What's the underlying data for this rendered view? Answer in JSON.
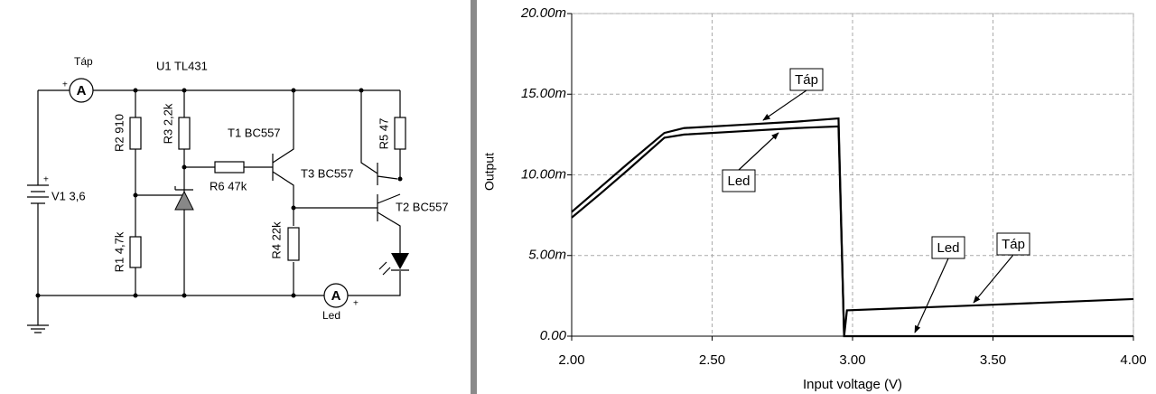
{
  "circuit": {
    "labels": {
      "tap_meter": "Táp",
      "u1": "U1 TL431",
      "r2": "R2 910",
      "r3": "R3 2,2k",
      "t1": "T1 BC557",
      "r5": "R5 47",
      "t3": "T3 BC557",
      "t2": "T2 BC557",
      "r6": "R6 47k",
      "v1": "V1 3,6",
      "r1": "R1 4,7k",
      "r4": "R4 22k",
      "led_meter": "Led"
    },
    "ammeter": "A",
    "plus": "+"
  },
  "chart_data": {
    "type": "line",
    "xlabel": "Input voltage (V)",
    "ylabel": "Output",
    "x": [
      2.0,
      2.1,
      2.2,
      2.33,
      2.4,
      2.6,
      2.8,
      2.95,
      2.97,
      2.98,
      3.5,
      4.0
    ],
    "series": [
      {
        "name": "Táp",
        "color": "#000000",
        "values": [
          0.0077,
          0.0092,
          0.0107,
          0.0126,
          0.0129,
          0.0131,
          0.0133,
          0.0135,
          0,
          0.0016,
          0.00195,
          0.0023
        ]
      },
      {
        "name": "Led",
        "color": "#000000",
        "values": [
          0.00735,
          0.0088,
          0.0103,
          0.0123,
          0.0125,
          0.0127,
          0.0129,
          0.013,
          0,
          0,
          0,
          0
        ]
      }
    ],
    "annotations": [
      "Táp",
      "Led",
      "Led",
      "Táp"
    ],
    "xlim": [
      2.0,
      4.0
    ],
    "xticks": [
      {
        "value": 2.0,
        "label": "2.00"
      },
      {
        "value": 2.5,
        "label": "2.50"
      },
      {
        "value": 3.0,
        "label": "3.00"
      },
      {
        "value": 3.5,
        "label": "3.50"
      },
      {
        "value": 4.0,
        "label": "4.00"
      }
    ],
    "ylim": [
      0,
      0.02
    ],
    "yticks": [
      {
        "value": 0,
        "label": "0.00"
      },
      {
        "value": 0.005,
        "label": "5.00m"
      },
      {
        "value": 0.01,
        "label": "10.00m"
      },
      {
        "value": 0.015,
        "label": "15.00m"
      },
      {
        "value": 0.02,
        "label": "20.00m"
      }
    ],
    "grid": true
  }
}
